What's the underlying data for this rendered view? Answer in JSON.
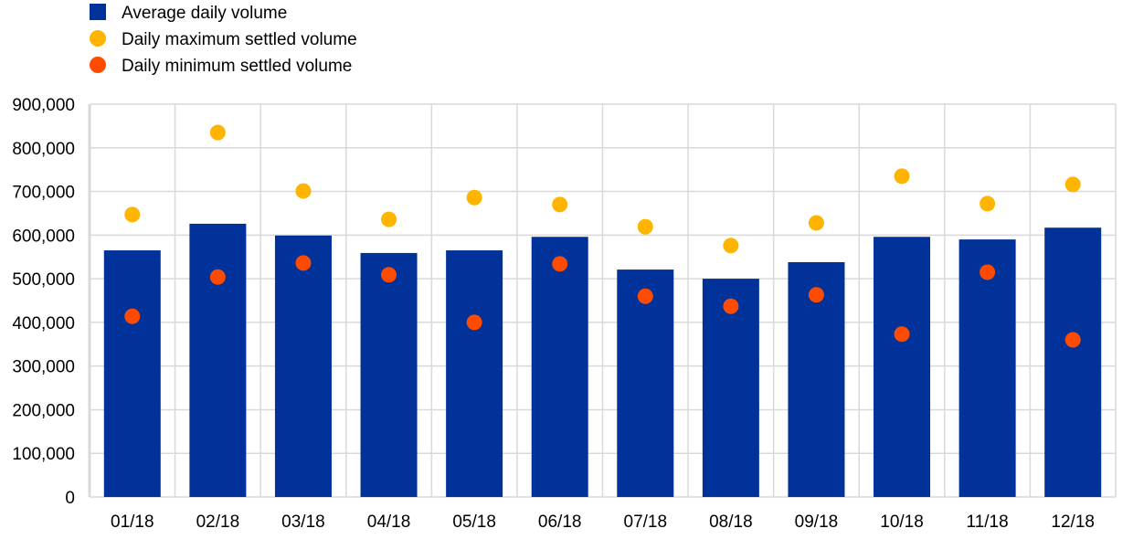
{
  "chart_data": {
    "type": "bar",
    "title": "",
    "xlabel": "",
    "ylabel": "",
    "ylim": [
      0,
      900000
    ],
    "yticks": [
      0,
      100000,
      200000,
      300000,
      400000,
      500000,
      600000,
      700000,
      800000,
      900000
    ],
    "ytick_labels": [
      "0",
      "100,000",
      "200,000",
      "300,000",
      "400,000",
      "500,000",
      "600,000",
      "700,000",
      "800,000",
      "900,000"
    ],
    "grid": true,
    "legend_position": "top-left",
    "categories": [
      "01/18",
      "02/18",
      "03/18",
      "04/18",
      "05/18",
      "06/18",
      "07/18",
      "08/18",
      "09/18",
      "10/18",
      "11/18",
      "12/18"
    ],
    "series": [
      {
        "name": "Average daily volume",
        "kind": "bar",
        "color": "#003299",
        "values": [
          565000,
          626000,
          599000,
          559000,
          565000,
          596000,
          521000,
          500000,
          538000,
          596000,
          590000,
          617000
        ]
      },
      {
        "name": "Daily maximum settled volume",
        "kind": "dot",
        "color": "#FFB400",
        "values": [
          647000,
          835000,
          701000,
          636000,
          686000,
          670000,
          619000,
          576000,
          628000,
          735000,
          672000,
          716000
        ]
      },
      {
        "name": "Daily minimum settled volume",
        "kind": "dot",
        "color": "#FF4B00",
        "values": [
          414000,
          504000,
          536000,
          509000,
          400000,
          534000,
          460000,
          437000,
          463000,
          373000,
          515000,
          360000
        ]
      }
    ]
  }
}
